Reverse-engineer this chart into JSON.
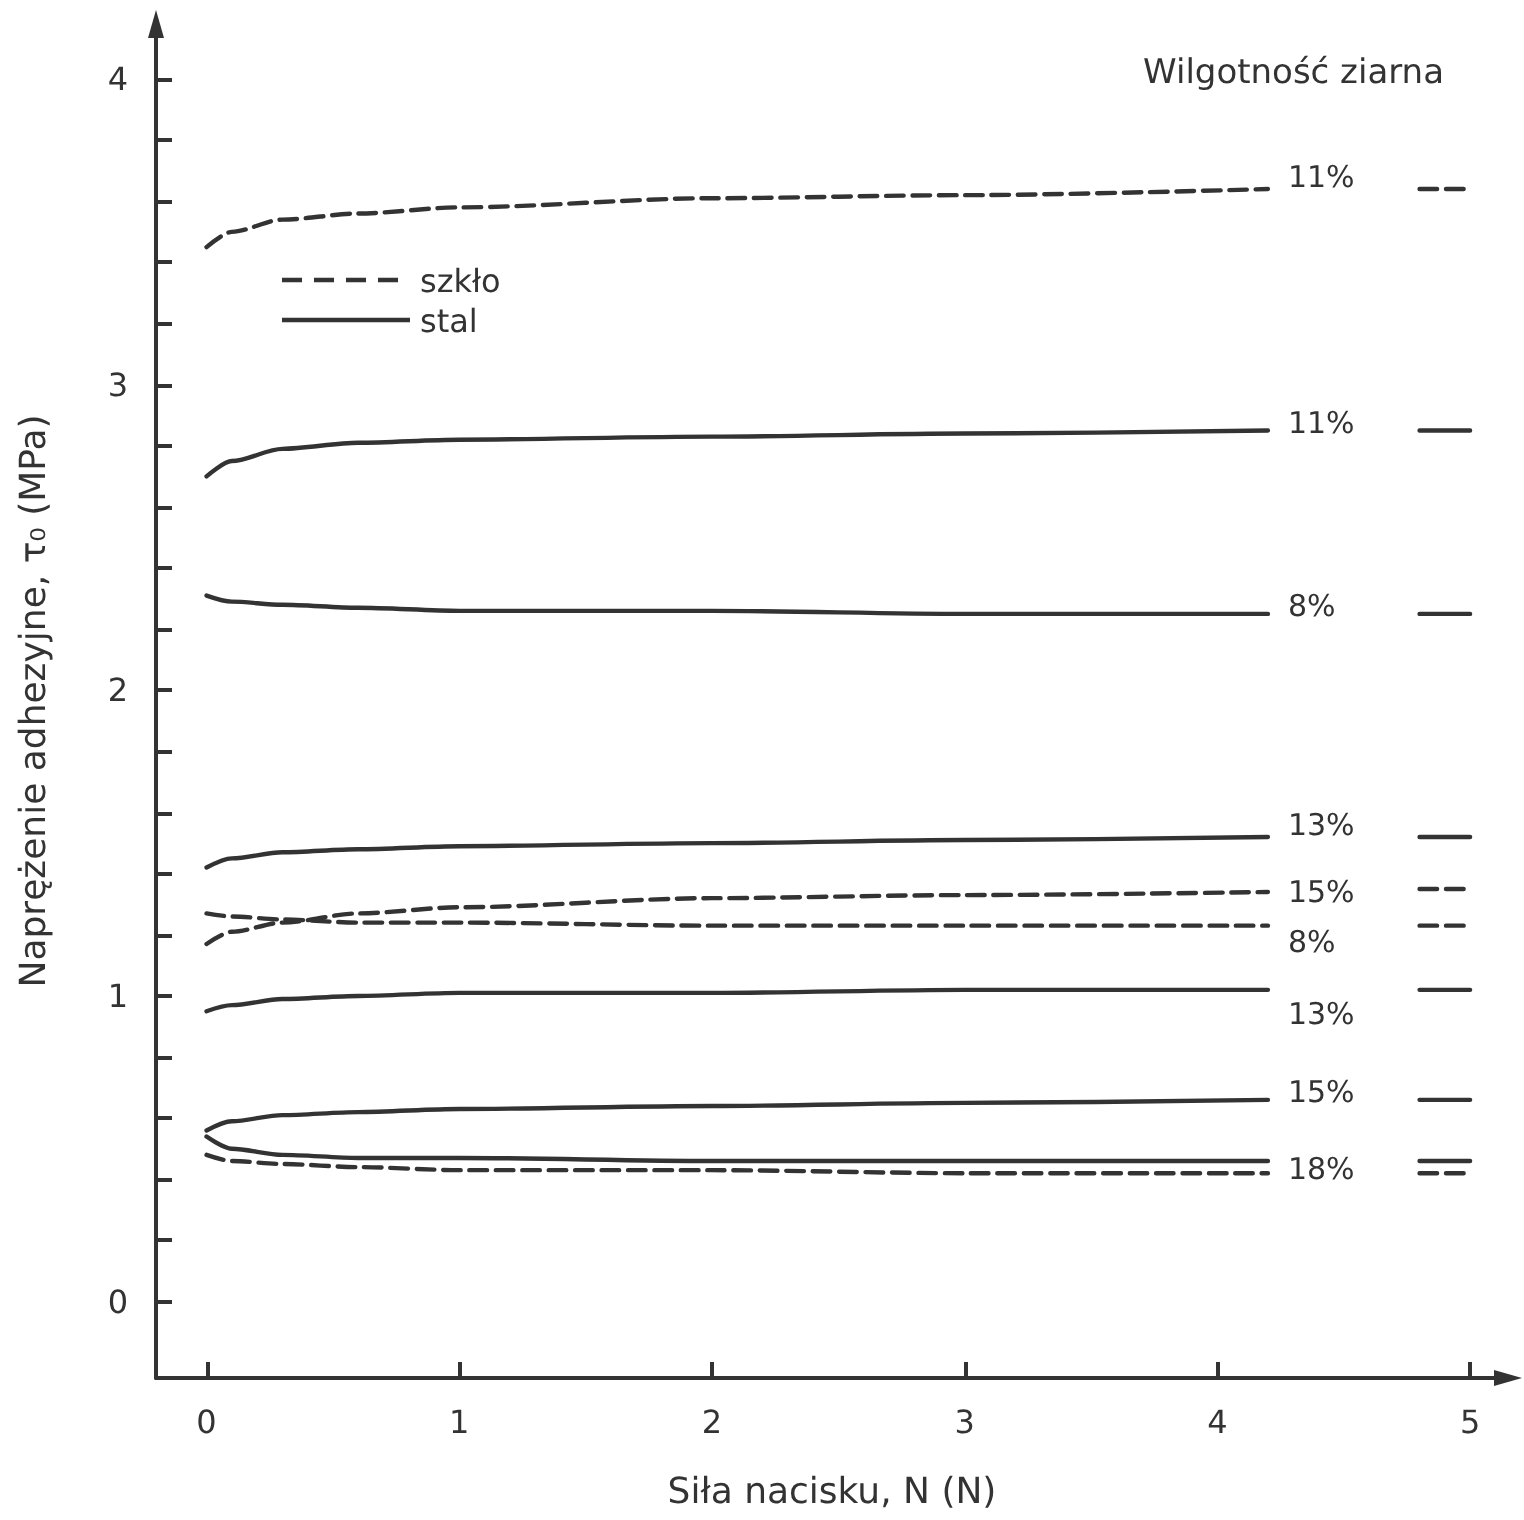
{
  "chart_data": {
    "type": "line",
    "xlabel": "Siła nacisku, N (N)",
    "ylabel": "Naprężenie adhezyjne, τ₀ (MPa)",
    "annotations": [
      "Wilgotność ziarna",
      "szkło",
      "stal"
    ],
    "x": [
      0,
      0.1,
      0.3,
      0.6,
      1,
      2,
      3,
      4.2,
      4.5,
      4.8,
      5.0
    ],
    "xlim": [
      -0.2,
      5.15
    ],
    "xticks": [
      0,
      1,
      2,
      3,
      4,
      5
    ],
    "ylim": [
      -0.25,
      4.18
    ],
    "yticks": [
      0,
      {
        "value": 0.2,
        "label": null
      },
      {
        "value": 0.4,
        "label": null
      },
      {
        "value": 0.6,
        "label": null
      },
      {
        "value": 0.8,
        "label": null
      },
      1,
      {
        "value": 1.2,
        "label": null
      },
      {
        "value": 1.4,
        "label": null
      },
      {
        "value": 1.6,
        "label": null
      },
      {
        "value": 1.8,
        "label": null
      },
      2,
      {
        "value": 2.2,
        "label": null
      },
      {
        "value": 2.4,
        "label": null
      },
      {
        "value": 2.6,
        "label": null
      },
      {
        "value": 2.8,
        "label": null
      },
      3,
      {
        "value": 3.2,
        "label": null
      },
      {
        "value": 3.4,
        "label": null
      },
      {
        "value": 3.6,
        "label": null
      },
      {
        "value": 3.8,
        "label": null
      },
      4
    ],
    "grid": false,
    "legend": false,
    "marker": "none",
    "series": [
      {
        "name": "11%",
        "color": "#333333",
        "line_style": "dashed",
        "values": [
          3.45,
          3.5,
          3.54,
          3.56,
          3.58,
          3.61,
          3.62,
          3.64,
          null,
          3.64,
          3.64
        ]
      },
      {
        "name": "11%",
        "color": "#333333",
        "line_style": "solid",
        "values": [
          2.7,
          2.75,
          2.79,
          2.81,
          2.82,
          2.83,
          2.84,
          2.85,
          null,
          2.85,
          2.85
        ]
      },
      {
        "name": "8%",
        "color": "#333333",
        "line_style": "solid",
        "values": [
          2.31,
          2.29,
          2.28,
          2.27,
          2.26,
          2.26,
          2.25,
          2.25,
          null,
          2.25,
          2.25
        ]
      },
      {
        "name": "13%",
        "color": "#333333",
        "line_style": "solid",
        "values": [
          1.42,
          1.45,
          1.47,
          1.48,
          1.49,
          1.5,
          1.51,
          1.52,
          null,
          1.52,
          1.52
        ]
      },
      {
        "name": "15%",
        "color": "#333333",
        "line_style": "dashed",
        "values": [
          1.17,
          1.21,
          1.24,
          1.27,
          1.29,
          1.32,
          1.33,
          1.34,
          null,
          1.35,
          1.35
        ]
      },
      {
        "name": "8%",
        "color": "#333333",
        "line_style": "dashed",
        "values": [
          1.27,
          1.26,
          1.25,
          1.24,
          1.24,
          1.23,
          1.23,
          1.23,
          null,
          1.23,
          1.23
        ]
      },
      {
        "name": "13%",
        "color": "#333333",
        "line_style": "solid",
        "values": [
          0.95,
          0.97,
          0.99,
          1.0,
          1.01,
          1.01,
          1.02,
          1.02,
          null,
          1.02,
          1.02
        ]
      },
      {
        "name": "15%",
        "color": "#333333",
        "line_style": "solid",
        "values": [
          0.56,
          0.59,
          0.61,
          0.62,
          0.63,
          0.64,
          0.65,
          0.66,
          null,
          0.66,
          0.66
        ]
      },
      {
        "name": "18%",
        "color": "#333333",
        "line_style": "solid",
        "values": [
          0.54,
          0.5,
          0.48,
          0.47,
          0.47,
          0.46,
          0.46,
          0.46,
          null,
          0.46,
          0.46
        ]
      },
      {
        "color": "#333333",
        "line_style": "dashed",
        "values": [
          0.48,
          0.46,
          0.45,
          0.44,
          0.43,
          0.43,
          0.42,
          0.42,
          null,
          0.42,
          0.42
        ]
      }
    ]
  }
}
